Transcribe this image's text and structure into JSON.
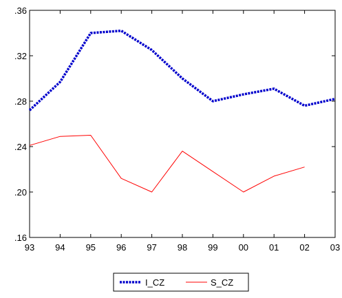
{
  "chart_data": {
    "type": "line",
    "title": "",
    "xlabel": "",
    "ylabel": "",
    "categories": [
      "93",
      "94",
      "95",
      "96",
      "97",
      "98",
      "99",
      "00",
      "01",
      "02",
      "03"
    ],
    "ylim": [
      0.16,
      0.36
    ],
    "y_ticks": [
      ".16",
      ".20",
      ".24",
      ".28",
      ".32",
      ".36"
    ],
    "y_tick_values": [
      0.16,
      0.2,
      0.24,
      0.28,
      0.32,
      0.36
    ],
    "grid": false,
    "legend_position": "bottom-center",
    "series": [
      {
        "name": "I_CZ",
        "color": "#0000cc",
        "style": "dotted-thick",
        "values": [
          0.272,
          0.297,
          0.34,
          0.342,
          0.325,
          0.3,
          0.28,
          0.286,
          0.291,
          0.276,
          0.282
        ]
      },
      {
        "name": "S_CZ",
        "color": "#ff0000",
        "style": "solid-thin",
        "values": [
          0.241,
          0.249,
          0.25,
          0.212,
          0.2,
          0.236,
          0.218,
          0.2,
          0.214,
          0.222,
          null
        ]
      }
    ]
  }
}
